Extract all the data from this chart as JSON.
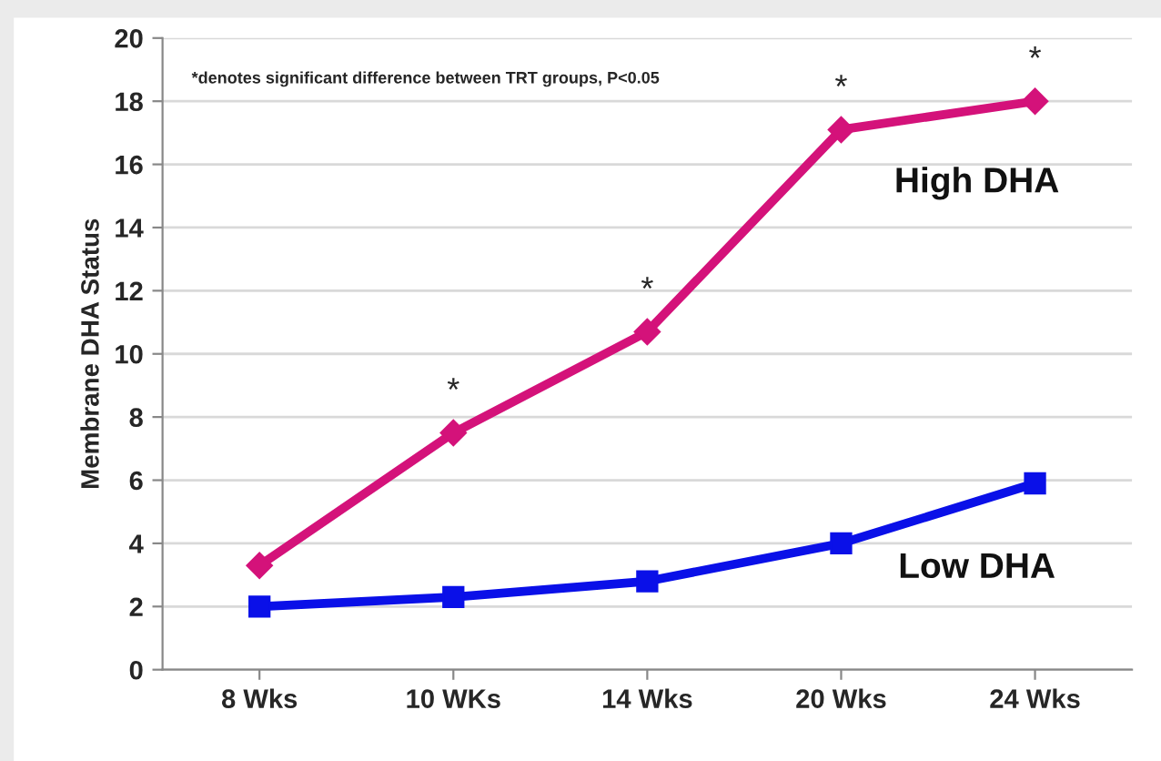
{
  "chart_data": {
    "type": "line",
    "ylabel": "Membrane DHA Status",
    "categories": [
      "8 Wks",
      "10 WKs",
      "14 Wks",
      "20 Wks",
      "24 Wks"
    ],
    "series": [
      {
        "name": "High DHA",
        "color": "#d4127a",
        "marker": "diamond",
        "values": [
          3.3,
          7.5,
          10.7,
          17.1,
          18.0
        ]
      },
      {
        "name": "Low DHA",
        "color": "#0a10e8",
        "marker": "square",
        "values": [
          2.0,
          2.3,
          2.8,
          4.0,
          5.9
        ]
      }
    ],
    "ylim": [
      0,
      20
    ],
    "yticks": [
      0,
      2,
      4,
      6,
      8,
      10,
      12,
      14,
      16,
      18,
      20
    ],
    "grid": "y",
    "line_style": "solid",
    "annotations": [
      "*denotes significant difference between TRT groups, P<0.05",
      {
        "text": "*",
        "x": "10 WKs",
        "y": 7.5
      },
      {
        "text": "*",
        "x": "14 Wks",
        "y": 10.7
      },
      {
        "text": "*",
        "x": "20 Wks",
        "y": 17.1
      },
      {
        "text": "*",
        "x": "24 Wks",
        "y": 18.0
      }
    ]
  }
}
